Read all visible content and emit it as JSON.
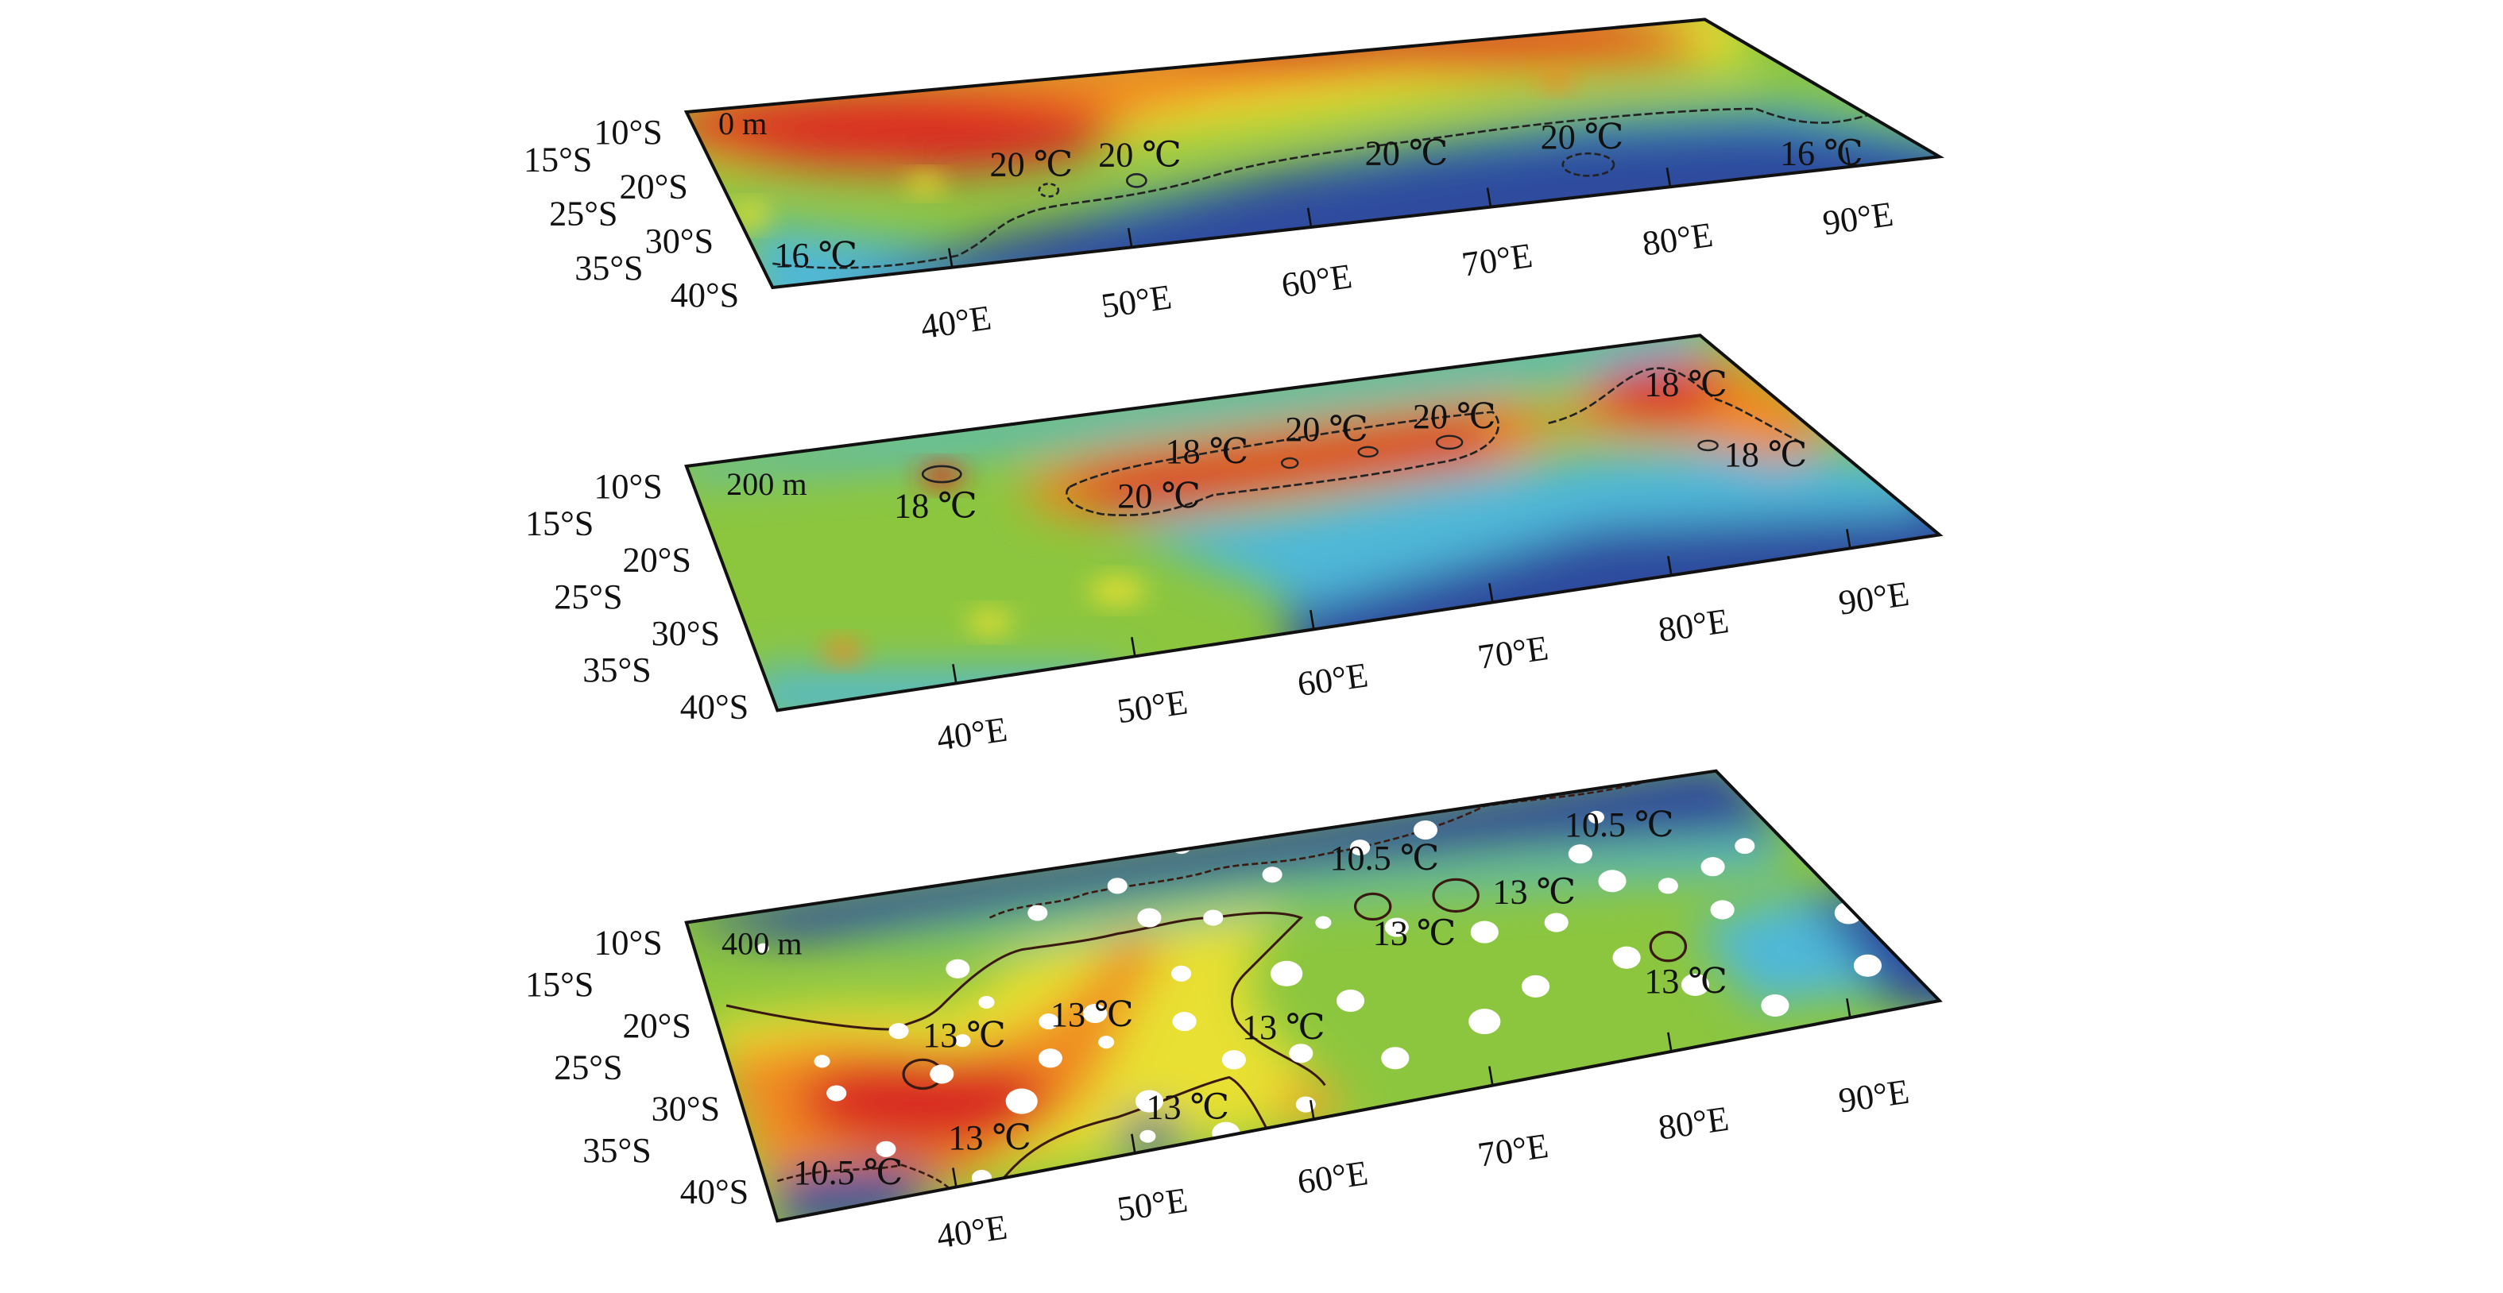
{
  "panels": [
    {
      "depth_label": "0 m",
      "contour_labels": [
        "20 ℃",
        "20 ℃",
        "20 ℃",
        "20 ℃",
        "16 ℃",
        "16 ℃"
      ],
      "lat_ticks": [
        "10°S",
        "15°S",
        "20°S",
        "25°S",
        "30°S",
        "35°S",
        "40°S"
      ],
      "lon_ticks": [
        "40°E",
        "50°E",
        "60°E",
        "70°E",
        "80°E",
        "90°E"
      ]
    },
    {
      "depth_label": "200 m",
      "contour_labels": [
        "18 ℃",
        "18 ℃",
        "20 ℃",
        "20 ℃",
        "20 ℃",
        "18 ℃",
        "18 ℃"
      ],
      "lat_ticks": [
        "10°S",
        "15°S",
        "20°S",
        "25°S",
        "30°S",
        "35°S",
        "40°S"
      ],
      "lon_ticks": [
        "40°E",
        "50°E",
        "60°E",
        "70°E",
        "80°E",
        "90°E"
      ]
    },
    {
      "depth_label": "400 m",
      "contour_labels": [
        "10.5 ℃",
        "10.5 ℃",
        "13 ℃",
        "13 ℃",
        "13 ℃",
        "13 ℃",
        "13 ℃",
        "13 ℃",
        "13 ℃",
        "13 ℃",
        "10.5 ℃"
      ],
      "lat_ticks": [
        "10°S",
        "15°S",
        "20°S",
        "25°S",
        "30°S",
        "35°S",
        "40°S"
      ],
      "lon_ticks": [
        "40°E",
        "50°E",
        "60°E",
        "70°E",
        "80°E",
        "90°E"
      ]
    }
  ],
  "colormap": {
    "cold": "#2f4c9e",
    "cool": "#4fb8d8",
    "mid": "#8cc63f",
    "warm": "#e8e030",
    "hot": "#f08a24",
    "hottest": "#d92a24"
  }
}
